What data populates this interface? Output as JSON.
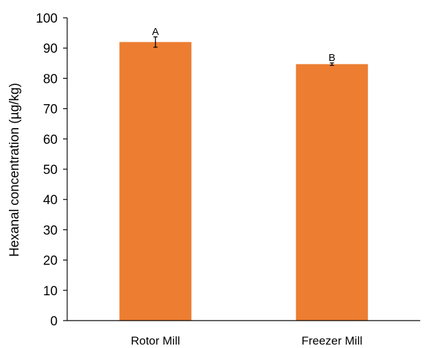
{
  "chart_data": {
    "type": "bar",
    "title": "",
    "xlabel": "",
    "ylabel": "Hexanal concentration (µg/kg)",
    "categories": [
      "Rotor Mill",
      "Freezer Mill"
    ],
    "values": [
      92,
      84.7
    ],
    "error": [
      1.7,
      0.4
    ],
    "significance_labels": [
      "A",
      "B"
    ],
    "ylim": [
      0,
      100
    ],
    "yticks": [
      "0",
      "10",
      "20",
      "30",
      "40",
      "50",
      "60",
      "70",
      "80",
      "90",
      "100"
    ],
    "grid": false,
    "legend": "none",
    "bar_color": "#ED7D31"
  }
}
